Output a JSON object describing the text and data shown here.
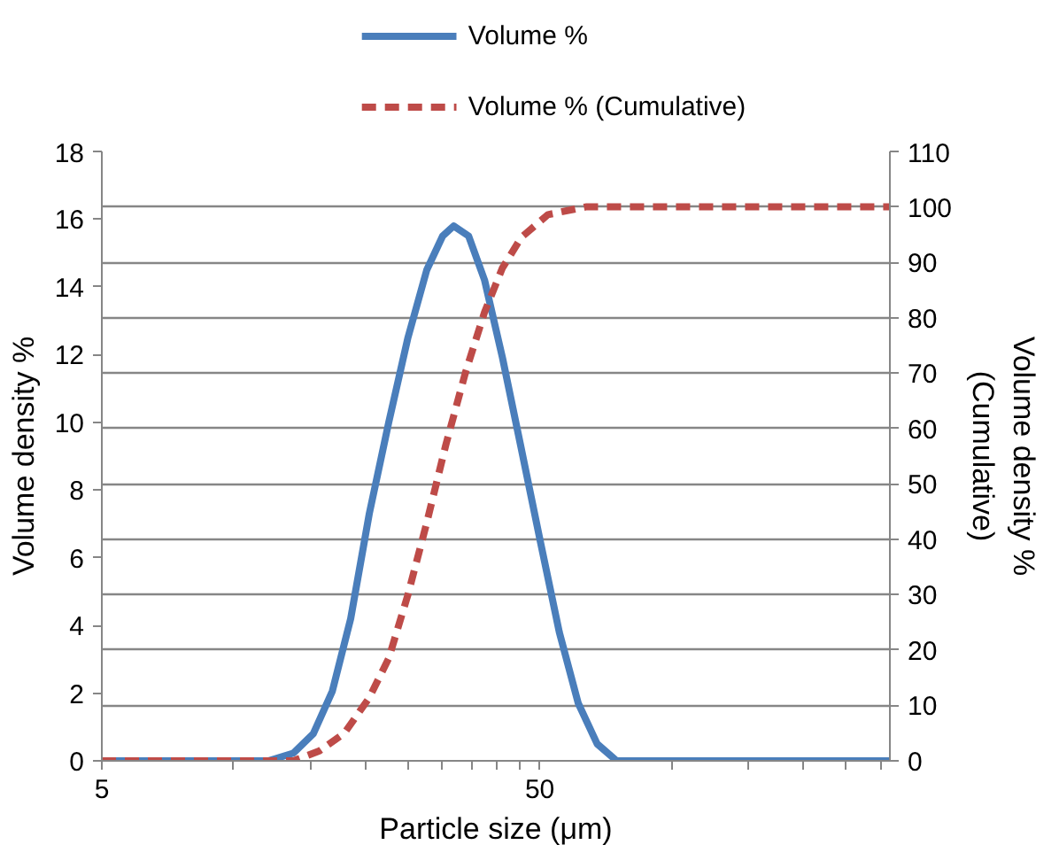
{
  "chart_data": {
    "type": "line",
    "xlabel": "Particle size (μm)",
    "ylabel": "Volume density %",
    "y2label": "Volume density %\n(Cumulative)",
    "log": "x",
    "xlim": [
      5,
      315
    ],
    "xticks": [
      5,
      {
        "value": 10,
        "label": null
      },
      {
        "value": 15,
        "label": null
      },
      {
        "value": 20,
        "label": null
      },
      {
        "value": 25,
        "label": null
      },
      {
        "value": 30,
        "label": null
      },
      {
        "value": 35,
        "label": null
      },
      {
        "value": 40,
        "label": null
      },
      {
        "value": 45,
        "label": null
      },
      50,
      {
        "value": 100,
        "label": null
      },
      {
        "value": 150,
        "label": null
      },
      {
        "value": 200,
        "label": null
      },
      {
        "value": 250,
        "label": null
      },
      {
        "value": 300,
        "label": null
      }
    ],
    "ylim": [
      0,
      18
    ],
    "yticks": [
      0,
      2,
      4,
      6,
      8,
      10,
      12,
      14,
      16,
      18
    ],
    "y2lim": [
      0,
      110
    ],
    "y2ticks": [
      0,
      10,
      20,
      30,
      40,
      50,
      60,
      70,
      80,
      90,
      100,
      110
    ],
    "grid": "y2",
    "legend": "top",
    "series": [
      {
        "name": "Volume %",
        "color": "#4a7ebb",
        "line_style": "solid",
        "x": [
          5,
          12.0,
          13.7,
          15.2,
          16.8,
          18.5,
          20.4,
          22.6,
          25.0,
          27.6,
          30.0,
          31.8,
          34.4,
          37.4,
          41.1,
          45.4,
          50.1,
          55.4,
          61.2,
          67.6,
          74.9,
          315
        ],
        "values": [
          0,
          0,
          0.23,
          0.8,
          2.06,
          4.2,
          7.3,
          10.0,
          12.5,
          14.5,
          15.5,
          15.8,
          15.5,
          14.2,
          11.9,
          9.2,
          6.5,
          3.8,
          1.7,
          0.5,
          0,
          0
        ]
      },
      {
        "name": "Volume % (Cumulative)",
        "color": "#be4b48",
        "line_style": "dashed",
        "axis": "y2",
        "x": [
          5,
          13.7,
          15.7,
          17.9,
          20.4,
          22.6,
          25.0,
          27.6,
          30.5,
          33.8,
          37.4,
          41.1,
          45.4,
          52.2,
          63.7,
          315
        ],
        "values": [
          0,
          0,
          1.8,
          5,
          11.4,
          18.5,
          30,
          43,
          57,
          70,
          81,
          89,
          94.5,
          98.6,
          100,
          100
        ]
      }
    ]
  }
}
